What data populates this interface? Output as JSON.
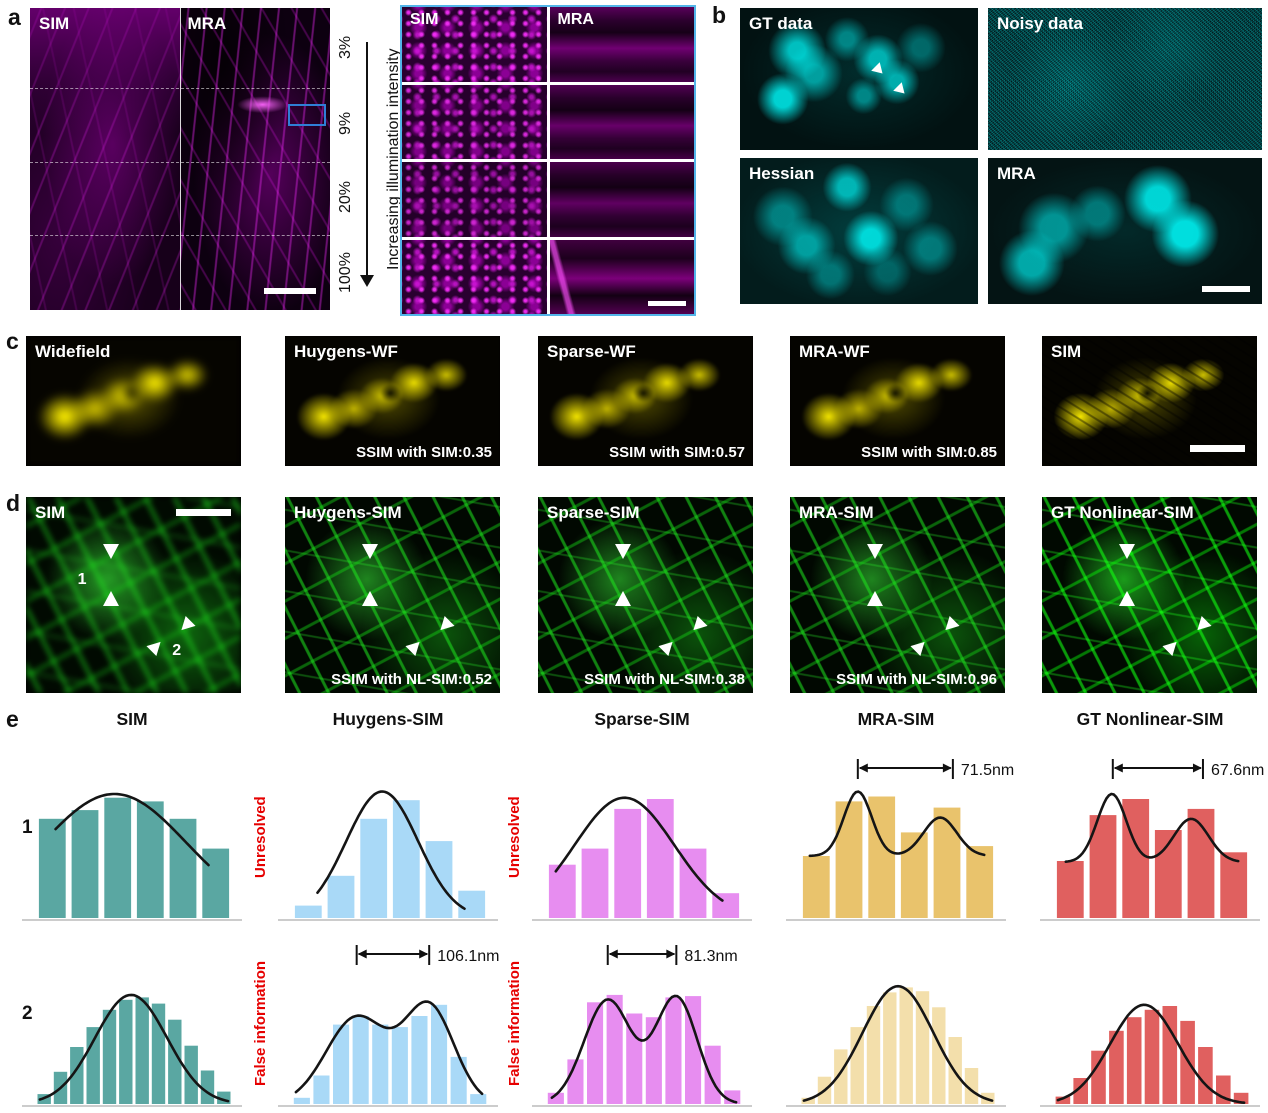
{
  "panels": {
    "a": {
      "label": "a",
      "image_labels": [
        "SIM",
        "MRA"
      ],
      "intensity_ticks": [
        "3%",
        "9%",
        "20%",
        "100%"
      ],
      "arrow_caption": "Increasing illumination intensity",
      "zoom_labels": [
        "SIM",
        "MRA"
      ]
    },
    "b": {
      "label": "b",
      "image_labels": [
        "GT data",
        "Noisy data",
        "Hessian",
        "MRA"
      ]
    },
    "c": {
      "label": "c",
      "images": [
        {
          "title": "Widefield",
          "ssim": ""
        },
        {
          "title": "Huygens-WF",
          "ssim": "SSIM with SIM:0.35"
        },
        {
          "title": "Sparse-WF",
          "ssim": "SSIM with SIM:0.57"
        },
        {
          "title": "MRA-WF",
          "ssim": "SSIM with SIM:0.85"
        },
        {
          "title": "SIM",
          "ssim": ""
        }
      ]
    },
    "d": {
      "label": "d",
      "marker_labels": [
        "1",
        "2"
      ],
      "images": [
        {
          "title": "SIM",
          "ssim": ""
        },
        {
          "title": "Huygens-SIM",
          "ssim": "SSIM with NL-SIM:0.52"
        },
        {
          "title": "Sparse-SIM",
          "ssim": "SSIM with NL-SIM:0.38"
        },
        {
          "title": "MRA-SIM",
          "ssim": "SSIM with NL-SIM:0.96"
        },
        {
          "title": "GT Nonlinear-SIM",
          "ssim": ""
        }
      ]
    },
    "e": {
      "label": "e",
      "column_titles": [
        "SIM",
        "Huygens-SIM",
        "Sparse-SIM",
        "MRA-SIM",
        "GT Nonlinear-SIM"
      ]
    }
  },
  "colors": {
    "teal": "#5aa7a2",
    "light_blue": "#a9d9f7",
    "violet": "#e78df0",
    "gold": "#e9c36c",
    "pale_gold": "#f3dfab",
    "red_bar": "#e0605f",
    "annotation_red": "#e60000",
    "zoom_border_blue": "#52b5e9",
    "roi_blue": "#2f7fd6"
  },
  "chart_data": [
    {
      "type": "bar",
      "row": 1,
      "column": "SIM",
      "bar_color": "#5aa7a2",
      "values": [
        0.8,
        0.87,
        0.97,
        0.94,
        0.8,
        0.56
      ],
      "curve": {
        "offset": 0,
        "components": [
          {
            "amp": 1.0,
            "mu": 0.4,
            "sigma": 0.52
          }
        ],
        "x_range": [
          0.1,
          0.88
        ]
      },
      "annotation": null,
      "side_label": null,
      "row_label": "1"
    },
    {
      "type": "bar",
      "row": 1,
      "column": "Huygens-SIM",
      "bar_color": "#a9d9f7",
      "values": [
        0.1,
        0.34,
        0.8,
        0.95,
        0.62,
        0.22
      ],
      "curve": {
        "offset": 0,
        "components": [
          {
            "amp": 1.02,
            "mu": 0.46,
            "sigma": 0.26
          }
        ],
        "x_range": [
          0.13,
          0.88
        ]
      },
      "annotation": null,
      "side_label": "Unresolved",
      "row_label": null
    },
    {
      "type": "bar",
      "row": 1,
      "column": "Sparse-SIM",
      "bar_color": "#e78df0",
      "values": [
        0.43,
        0.56,
        0.88,
        0.96,
        0.56,
        0.2
      ],
      "curve": {
        "offset": 0,
        "components": [
          {
            "amp": 0.97,
            "mu": 0.4,
            "sigma": 0.36
          }
        ],
        "x_range": [
          0.05,
          0.9
        ]
      },
      "annotation": null,
      "side_label": "Unresolved",
      "row_label": null
    },
    {
      "type": "bar",
      "row": 1,
      "column": "MRA-SIM",
      "bar_color": "#e9c36c",
      "values": [
        0.5,
        0.94,
        0.98,
        0.69,
        0.89,
        0.58
      ],
      "curve": {
        "offset": 0.5,
        "components": [
          {
            "amp": 0.52,
            "mu": 0.295,
            "sigma": 0.1
          },
          {
            "amp": 0.31,
            "mu": 0.715,
            "sigma": 0.12
          }
        ],
        "x_range": [
          0.05,
          0.94
        ]
      },
      "annotation": {
        "text": "71.5nm",
        "x1": 0.295,
        "x2": 0.78
      },
      "side_label": null,
      "row_label": null
    },
    {
      "type": "bar",
      "row": 1,
      "column": "GT Nonlinear-SIM",
      "bar_color": "#e0605f",
      "values": [
        0.46,
        0.83,
        0.96,
        0.71,
        0.88,
        0.53
      ],
      "curve": {
        "offset": 0.45,
        "components": [
          {
            "amp": 0.55,
            "mu": 0.295,
            "sigma": 0.105
          },
          {
            "amp": 0.35,
            "mu": 0.7,
            "sigma": 0.125
          }
        ],
        "x_range": [
          0.06,
          0.94
        ]
      },
      "annotation": {
        "text": "67.6nm",
        "x1": 0.3,
        "x2": 0.76
      },
      "side_label": null,
      "row_label": null
    },
    {
      "type": "bar",
      "row": 2,
      "column": "SIM",
      "bar_color": "#5aa7a2",
      "values": [
        0.08,
        0.26,
        0.46,
        0.62,
        0.76,
        0.84,
        0.86,
        0.81,
        0.68,
        0.47,
        0.27,
        0.1
      ],
      "curve": {
        "offset": 0,
        "components": [
          {
            "amp": 0.88,
            "mu": 0.485,
            "sigma": 0.26
          }
        ],
        "x_range": [
          0.02,
          0.98
        ]
      },
      "annotation": null,
      "side_label": null,
      "row_label": "2"
    },
    {
      "type": "bar",
      "row": 2,
      "column": "Huygens-SIM",
      "bar_color": "#a9d9f7",
      "values": [
        0.05,
        0.23,
        0.64,
        0.71,
        0.64,
        0.62,
        0.71,
        0.8,
        0.38,
        0.08
      ],
      "curve": {
        "offset": 0,
        "components": [
          {
            "amp": 0.7,
            "mu": 0.33,
            "sigma": 0.22
          },
          {
            "amp": 0.78,
            "mu": 0.7,
            "sigma": 0.18
          }
        ],
        "x_range": [
          0.02,
          0.97
        ]
      },
      "annotation": {
        "text": "106.1nm",
        "x1": 0.33,
        "x2": 0.7
      },
      "side_label": "False information",
      "row_label": null
    },
    {
      "type": "bar",
      "row": 2,
      "column": "Sparse-SIM",
      "bar_color": "#e78df0",
      "values": [
        0.09,
        0.36,
        0.82,
        0.88,
        0.73,
        0.7,
        0.86,
        0.87,
        0.47,
        0.11
      ],
      "curve": {
        "offset": 0,
        "components": [
          {
            "amp": 0.84,
            "mu": 0.315,
            "sigma": 0.17
          },
          {
            "amp": 0.86,
            "mu": 0.665,
            "sigma": 0.15
          }
        ],
        "x_range": [
          0.03,
          0.97
        ]
      },
      "annotation": {
        "text": "81.3nm",
        "x1": 0.315,
        "x2": 0.665
      },
      "side_label": "False information",
      "row_label": null
    },
    {
      "type": "bar",
      "row": 2,
      "column": "MRA-SIM",
      "bar_color": "#f3dfab",
      "values": [
        0.05,
        0.22,
        0.44,
        0.62,
        0.79,
        0.9,
        0.94,
        0.91,
        0.78,
        0.54,
        0.29,
        0.09
      ],
      "curve": {
        "offset": 0,
        "components": [
          {
            "amp": 0.95,
            "mu": 0.5,
            "sigma": 0.255
          }
        ],
        "x_range": [
          0.02,
          0.98
        ]
      },
      "annotation": null,
      "side_label": null,
      "row_label": null
    },
    {
      "type": "bar",
      "row": 2,
      "column": "GT Nonlinear-SIM",
      "bar_color": "#e0605f",
      "values": [
        0.06,
        0.21,
        0.43,
        0.59,
        0.7,
        0.76,
        0.79,
        0.67,
        0.46,
        0.23,
        0.09
      ],
      "curve": {
        "offset": 0,
        "components": [
          {
            "amp": 0.8,
            "mu": 0.46,
            "sigma": 0.245
          }
        ],
        "x_range": [
          0.02,
          0.97
        ]
      },
      "annotation": null,
      "side_label": null,
      "row_label": null
    }
  ]
}
